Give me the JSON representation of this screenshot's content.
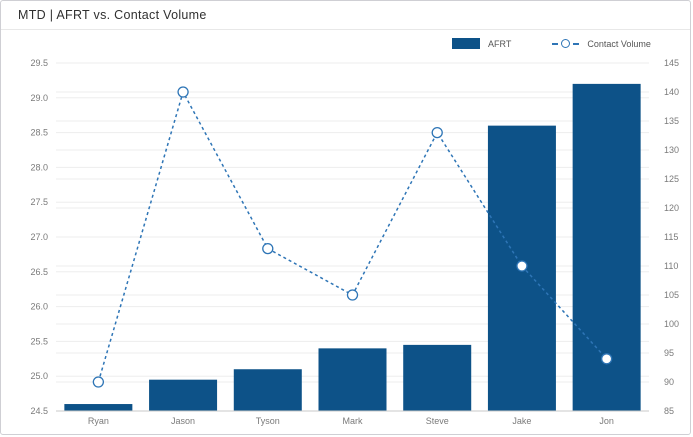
{
  "header": {
    "title": "MTD | AFRT vs. Contact Volume"
  },
  "colors": {
    "bar": "#0d5288",
    "line": "#2e75b6",
    "grid": "#ededed",
    "baseline": "#c9c9c9",
    "axis_text": "#7a7a7a",
    "marker_fill": "#ffffff",
    "title_text": "#303030",
    "border": "#cfcfd4"
  },
  "chart_data": {
    "type": "combo",
    "title": "MTD | AFRT vs. Contact Volume",
    "categories": [
      "Ryan",
      "Jason",
      "Tyson",
      "Mark",
      "Steve",
      "Jake",
      "Jon"
    ],
    "series": [
      {
        "name": "AFRT",
        "type": "bar",
        "axis": "left",
        "values": [
          24.6,
          24.95,
          25.1,
          25.4,
          25.45,
          28.6,
          29.2
        ]
      },
      {
        "name": "Contact Volume",
        "type": "line",
        "axis": "right",
        "values": [
          90,
          140,
          113,
          105,
          133,
          110,
          94
        ]
      }
    ],
    "left_axis": {
      "min": 24.5,
      "max": 29.5,
      "step": 0.5,
      "ticks": [
        "24.5",
        "25.0",
        "25.5",
        "26.0",
        "26.5",
        "27.0",
        "27.5",
        "28.0",
        "28.5",
        "29.0",
        "29.5"
      ]
    },
    "right_axis": {
      "min": 85,
      "max": 145,
      "step": 5,
      "ticks": [
        "85",
        "90",
        "95",
        "100",
        "105",
        "110",
        "115",
        "120",
        "125",
        "130",
        "135",
        "140",
        "145"
      ]
    },
    "grid": true,
    "legend_position": "top-right",
    "line_style": "dashed"
  }
}
